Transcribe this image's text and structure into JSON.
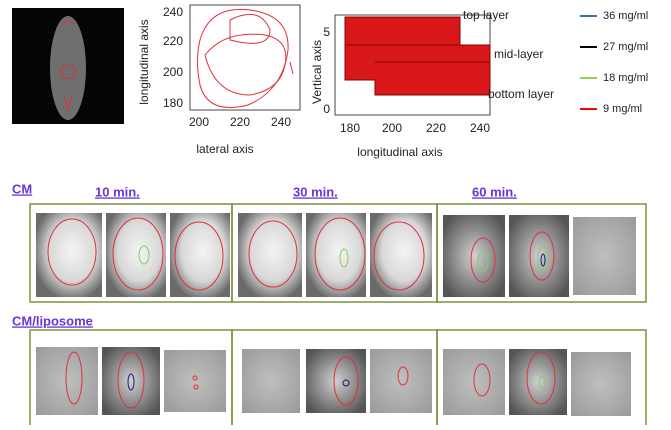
{
  "plot_lateral": {
    "y_label": "longitudinal axis",
    "x_label": "lateral axis",
    "yticks": [
      240,
      220,
      200,
      180
    ],
    "xticks": [
      200,
      220,
      240
    ]
  },
  "plot_vertical": {
    "y_label": "Vertical axis",
    "x_label": "longitudinal axis",
    "yticks": [
      5,
      0
    ],
    "xticks": [
      180,
      200,
      220,
      240
    ],
    "annotations": [
      "top layer",
      "mid-layer",
      "bottom layer"
    ]
  },
  "legend": [
    {
      "label": "36 mg/ml",
      "color": "#2e75b6"
    },
    {
      "label": "27 mg/ml",
      "color": "#000000"
    },
    {
      "label": "18 mg/ml",
      "color": "#92d050"
    },
    {
      "label": "9 mg/ml",
      "color": "#ff0000"
    }
  ],
  "sections": [
    {
      "title": "CM",
      "times": [
        "10 min.",
        "30 min.",
        "60 min."
      ]
    },
    {
      "title": "CM/liposome"
    }
  ]
}
